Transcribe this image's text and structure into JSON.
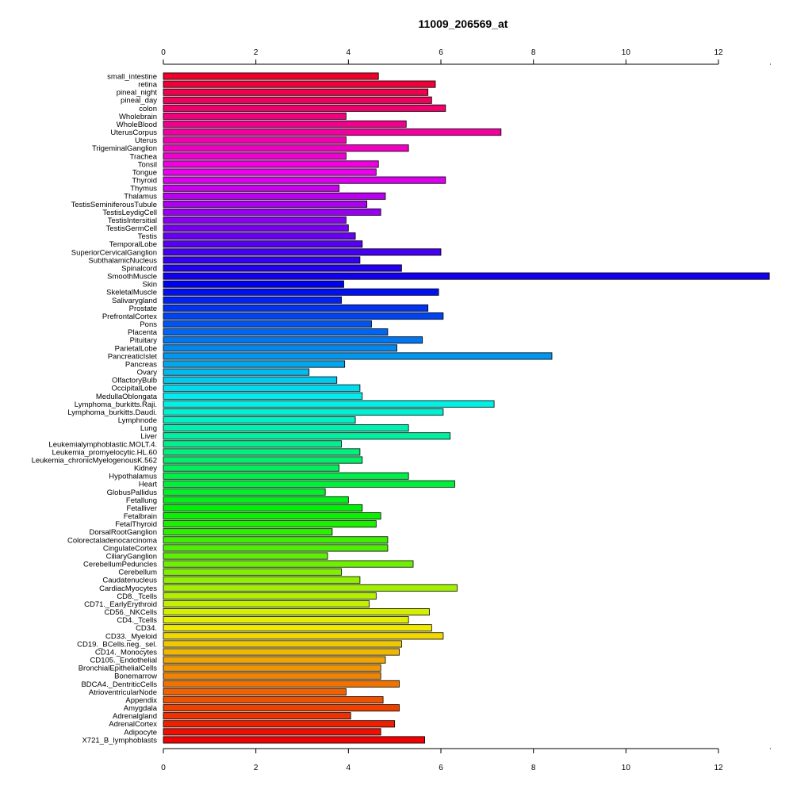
{
  "chart_data": {
    "type": "bar",
    "orientation": "horizontal",
    "title": "11009_206569_at",
    "xlabel": "",
    "ylabel": "",
    "xlim": [
      0,
      13.1
    ],
    "xticks": [
      0,
      2,
      4,
      6,
      8,
      10,
      12
    ],
    "grid": false,
    "legend": "none",
    "color_scheme": "rainbow (red → magenta → blue → cyan → green → yellow → orange → red)",
    "categories": [
      "small_intestine",
      "retina",
      "pineal_night",
      "pineal_day",
      "colon",
      "Wholebrain",
      "WholeBlood",
      "UterusCorpus",
      "Uterus",
      "TrigeminalGanglion",
      "Trachea",
      "Tonsil",
      "Tongue",
      "Thyroid",
      "Thymus",
      "Thalamus",
      "TestisSeminiferousTubule",
      "TestisLeydigCell",
      "TestisIntersitial",
      "TestisGermCell",
      "Testis",
      "TemporalLobe",
      "SuperiorCervicalGanglion",
      "SubthalamicNucleus",
      "Spinalcord",
      "SmoothMuscle",
      "Skin",
      "SkeletalMuscle",
      "Salivarygland",
      "Prostate",
      "PrefrontalCortex",
      "Pons",
      "Placenta",
      "Pituitary",
      "ParietalLobe",
      "PancreaticIslet",
      "Pancreas",
      "Ovary",
      "OlfactoryBulb",
      "OccipitalLobe",
      "MedullaOblongata",
      "Lymphoma_burkitts.Raji.",
      "Lymphoma_burkitts.Daudi.",
      "Lymphnode",
      "Lung",
      "Liver",
      "Leukemialymphoblastic.MOLT.4.",
      "Leukemia_promyelocytic.HL.60",
      "Leukemia_chronicMyelogenousK.562",
      "Kidney",
      "Hypothalamus",
      "Heart",
      "GlobusPallidus",
      "Fetallung",
      "Fetalliver",
      "Fetalbrain",
      "FetalThyroid",
      "DorsalRootGanglion",
      "Colorectaladenocarcinoma",
      "CingulateCortex",
      "CiliaryGanglion",
      "CerebellumPeduncles",
      "Cerebellum",
      "Caudatenucleus",
      "CardiacMyocytes",
      "CD8._Tcells",
      "CD71._EarlyErythroid",
      "CD56._NKCells",
      "CD4._Tcells",
      "CD34.",
      "CD33._Myeloid",
      "CD19._BCells.neg._sel.",
      "CD14._Monocytes",
      "CD105._Endothelial",
      "BronchialEpithelialCells",
      "Bonemarrow",
      "BDCA4._DentriticCells",
      "AtrioventricularNode",
      "Appendix",
      "Amygdala",
      "Adrenalgland",
      "AdrenalCortex",
      "Adipocyte",
      "X721_B_lymphoblasts"
    ],
    "values": [
      4.65,
      5.88,
      5.72,
      5.8,
      6.1,
      3.95,
      5.25,
      7.3,
      3.95,
      5.3,
      3.95,
      4.65,
      4.6,
      6.1,
      3.8,
      4.8,
      4.4,
      4.7,
      3.95,
      4.0,
      4.15,
      4.3,
      6.0,
      4.25,
      5.15,
      13.1,
      3.9,
      5.95,
      3.85,
      5.72,
      6.05,
      4.5,
      4.85,
      5.6,
      5.05,
      8.4,
      3.92,
      3.15,
      3.75,
      4.25,
      4.3,
      7.15,
      6.05,
      4.15,
      5.3,
      6.2,
      3.85,
      4.25,
      4.3,
      3.8,
      5.3,
      6.3,
      3.5,
      4.0,
      4.3,
      4.7,
      4.6,
      3.65,
      4.85,
      4.85,
      3.55,
      5.4,
      3.85,
      4.25,
      6.35,
      4.6,
      4.45,
      5.75,
      5.3,
      5.8,
      6.05,
      5.15,
      5.1,
      4.8,
      4.7,
      4.7,
      5.1,
      3.95,
      4.75,
      5.1,
      4.05,
      5.0,
      4.7,
      5.65
    ]
  }
}
